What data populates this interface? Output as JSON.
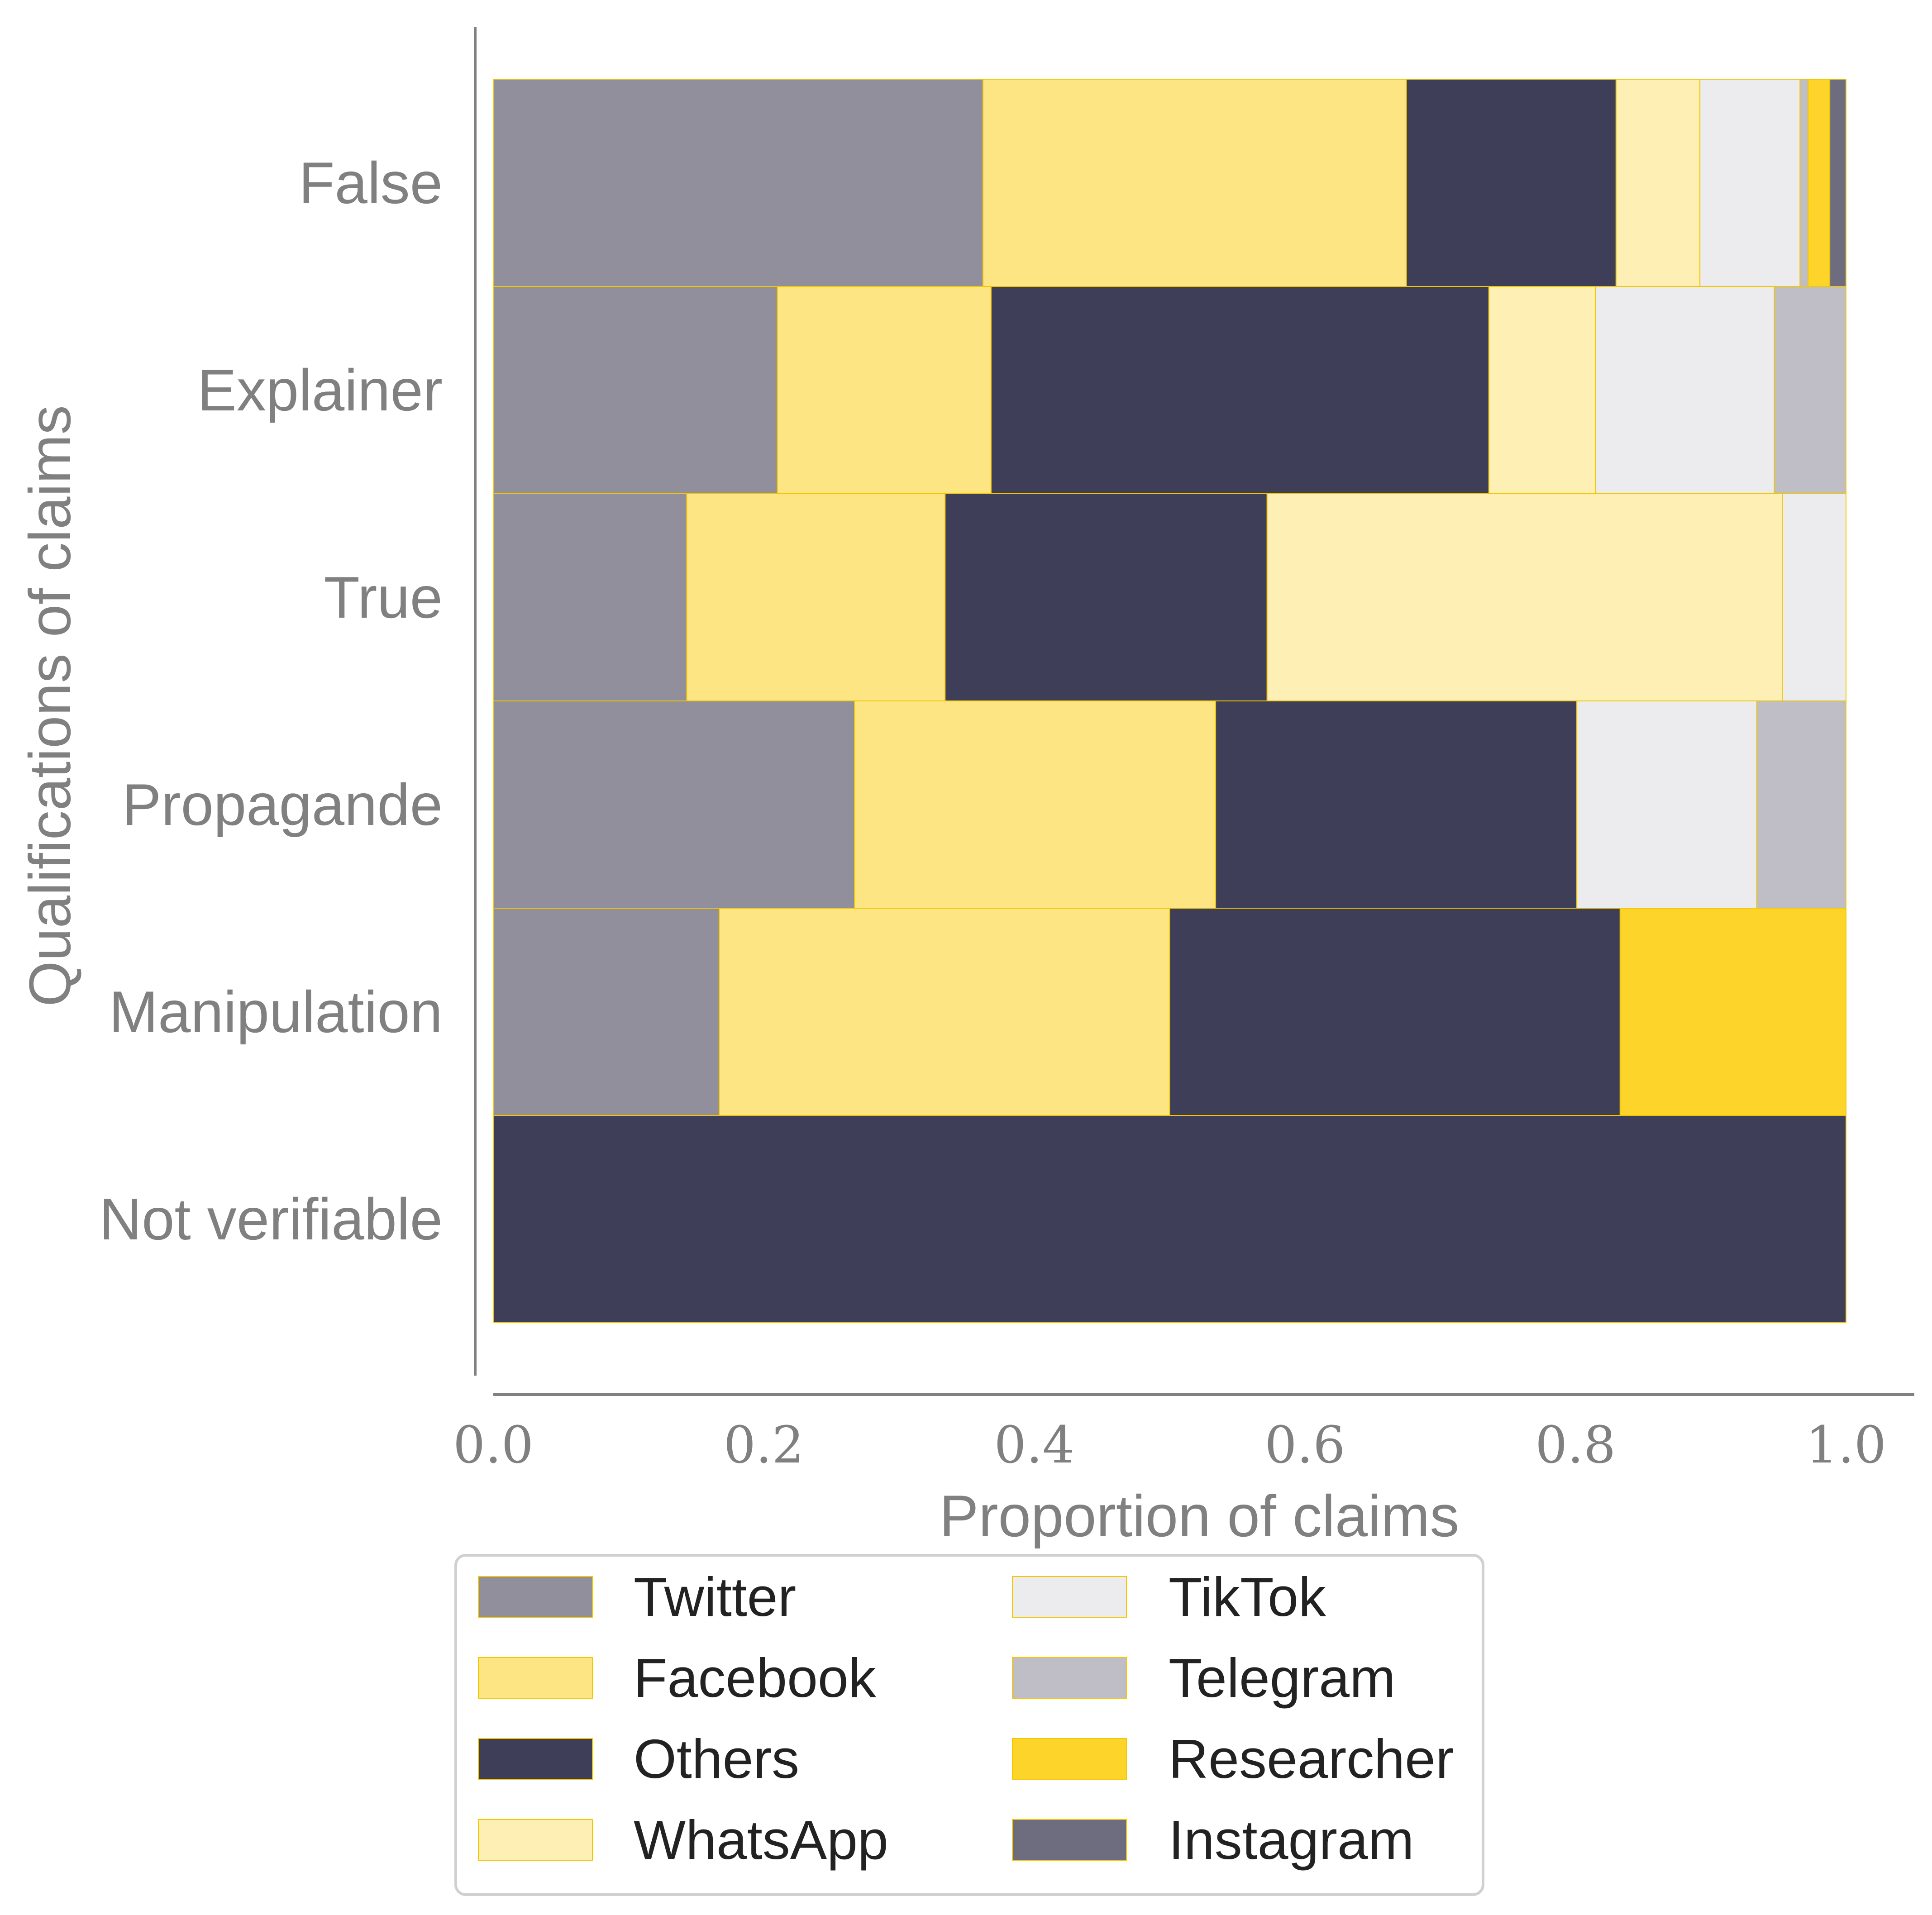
{
  "chart_data": {
    "type": "bar",
    "orientation": "horizontal",
    "stacked": true,
    "title": "",
    "xlabel": "Proportion of claims",
    "ylabel": "Qualifications of claims",
    "xlim": [
      0,
      1.0
    ],
    "x_ticks": [
      "0.0",
      "0.2",
      "0.4",
      "0.6",
      "0.8",
      "1.0"
    ],
    "grid": false,
    "legend_placement": "bottom-center",
    "categories": [
      "False",
      "Explainer",
      "True",
      "Propagande",
      "Manipulation",
      "Not verifiable"
    ],
    "series": [
      {
        "name": "Twitter",
        "color": "#918f9c",
        "values": [
          0.362,
          0.21,
          0.143,
          0.267,
          0.167,
          0
        ]
      },
      {
        "name": "Facebook",
        "color": "#fde584",
        "values": [
          0.313,
          0.158,
          0.191,
          0.267,
          0.333,
          0
        ]
      },
      {
        "name": "Others",
        "color": "#3e3e58",
        "values": [
          0.155,
          0.368,
          0.238,
          0.267,
          0.333,
          1.0
        ]
      },
      {
        "name": "WhatsApp",
        "color": "#fef0b4",
        "values": [
          0.062,
          0.079,
          0.381,
          0,
          0,
          0
        ]
      },
      {
        "name": "TikTok",
        "color": "#ececee",
        "values": [
          0.074,
          0.132,
          0.047,
          0.133,
          0,
          0
        ]
      },
      {
        "name": "Telegram",
        "color": "#bfbec6",
        "values": [
          0.006,
          0.053,
          0,
          0.066,
          0,
          0
        ]
      },
      {
        "name": "Researcher",
        "color": "#fdd42a",
        "values": [
          0.016,
          0,
          0,
          0,
          0.167,
          0
        ]
      },
      {
        "name": "Instagram",
        "color": "#6e6c7f",
        "values": [
          0.012,
          0,
          0,
          0,
          0,
          0
        ]
      }
    ],
    "bar_edge_color": "#f2c700"
  }
}
